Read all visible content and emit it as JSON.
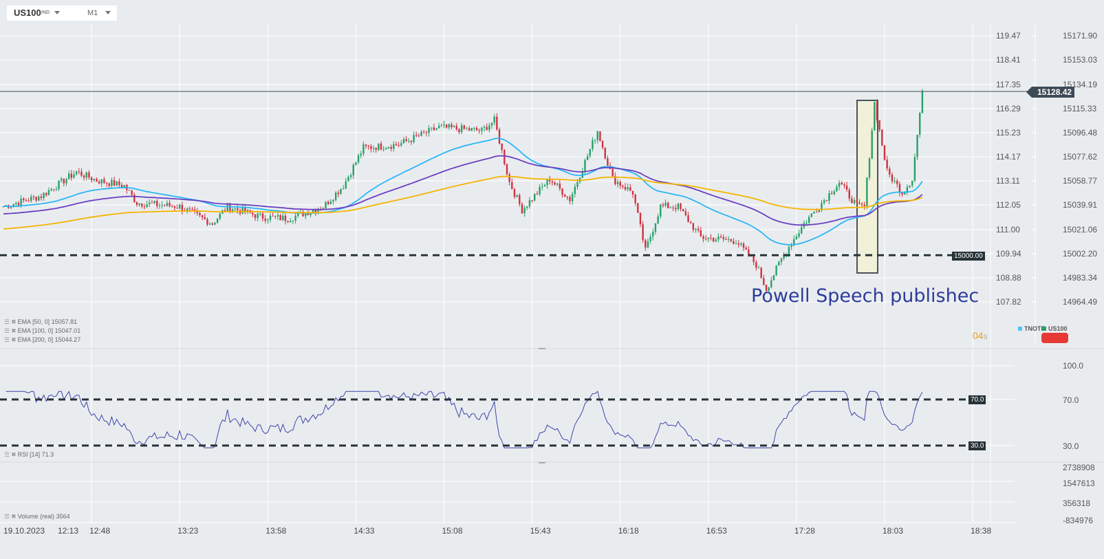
{
  "header": {
    "symbol": "US100",
    "symbol_type": "IND",
    "timeframe": "M1"
  },
  "colors": {
    "up": "#26a069",
    "down": "#d32f3f",
    "ema50": "#29b6f6",
    "ema100": "#6a3fc1",
    "ema200": "#f5b400",
    "rsi": "#3c45a8",
    "annotation_text": "#2e3b9b",
    "countdown": "#f39c12"
  },
  "price_axis_left": [
    "119.47",
    "118.41",
    "117.35",
    "116.29",
    "115.23",
    "114.17",
    "113.11",
    "112.05",
    "111.00",
    "109.94",
    "108.88",
    "107.82"
  ],
  "price_axis_right": [
    "15171.90",
    "15153.03",
    "15134.19",
    "15115.33",
    "15096.48",
    "15077.62",
    "15058.77",
    "15039.91",
    "15021.06",
    "15002.20",
    "14983.34",
    "14964.49"
  ],
  "current_price": "15128.42",
  "level_line": {
    "label": "15000.00",
    "value": 15000
  },
  "annotation": {
    "text": "Powell Speech published",
    "visible_text": "Powell Speech publishec"
  },
  "legend": {
    "ema50": "EMA  [50,  0]  15057.81",
    "ema100": "EMA  [100,  0]  15047.01",
    "ema200": "EMA  [200,  0]  15044.27"
  },
  "countdown": {
    "value": "04",
    "unit": "s"
  },
  "instruments": [
    {
      "name": "TNOTE",
      "color": "#4fc3f7"
    },
    {
      "name": "US100",
      "color": "#26a069"
    }
  ],
  "rsi": {
    "legend": "RSI  [14]  71.3",
    "axis": [
      "100.0",
      "70.0",
      "30.0"
    ],
    "levels": [
      "70.0",
      "30.0"
    ]
  },
  "volume": {
    "legend": "Volume  (real)  3564",
    "axis": [
      "2738908",
      "1547613",
      "356318",
      "-834976"
    ]
  },
  "time_axis": {
    "date": "19.10.2023",
    "labels": [
      "12:13",
      "12:48",
      "13:23",
      "13:58",
      "14:33",
      "15:08",
      "15:43",
      "16:18",
      "16:53",
      "17:28",
      "18:03",
      "18:38"
    ]
  },
  "chart_data": {
    "type": "candlestick",
    "symbol": "US100",
    "timeframe": "M1",
    "price_path": [
      [
        "12:13",
        15038.3
      ],
      [
        "12:28",
        15046.4
      ],
      [
        "12:42",
        15065.2
      ],
      [
        "12:50",
        15058.7
      ],
      [
        "13:01",
        15054.4
      ],
      [
        "13:06",
        15041.0
      ],
      [
        "13:23",
        15038.0
      ],
      [
        "13:36",
        15024.8
      ],
      [
        "13:42",
        15038.0
      ],
      [
        "13:55",
        15030.2
      ],
      [
        "14:06",
        15028.6
      ],
      [
        "14:20",
        15038.0
      ],
      [
        "14:28",
        15054.4
      ],
      [
        "14:36",
        15084.1
      ],
      [
        "14:50",
        15086.7
      ],
      [
        "15:06",
        15100.2
      ],
      [
        "15:23",
        15097.5
      ],
      [
        "15:28",
        15105.6
      ],
      [
        "15:34",
        15057.1
      ],
      [
        "15:39",
        15035.6
      ],
      [
        "15:50",
        15059.8
      ],
      [
        "15:58",
        15043.7
      ],
      [
        "16:09",
        15097.5
      ],
      [
        "16:15",
        15059.8
      ],
      [
        "16:23",
        15049.1
      ],
      [
        "16:28",
        15003.3
      ],
      [
        "16:34",
        15038.3
      ],
      [
        "16:41",
        15038.0
      ],
      [
        "16:50",
        15014.0
      ],
      [
        "17:04",
        15011.3
      ],
      [
        "17:12",
        14992.5
      ],
      [
        "17:16",
        14973.6
      ],
      [
        "17:23",
        15000.6
      ],
      [
        "17:31",
        15024.8
      ],
      [
        "17:45",
        15057.1
      ],
      [
        "17:52",
        15038.3
      ],
      [
        "17:55",
        15038.0
      ],
      [
        "17:59",
        15119.1
      ],
      [
        "18:04",
        15065.2
      ],
      [
        "18:10",
        15049.1
      ],
      [
        "18:14",
        15059.8
      ],
      [
        "18:18",
        15128.42
      ]
    ],
    "ylim": [
      14964.49,
      15171.9
    ],
    "indicators": [
      "EMA 50",
      "EMA 100",
      "EMA 200",
      "RSI 14",
      "Volume"
    ]
  }
}
